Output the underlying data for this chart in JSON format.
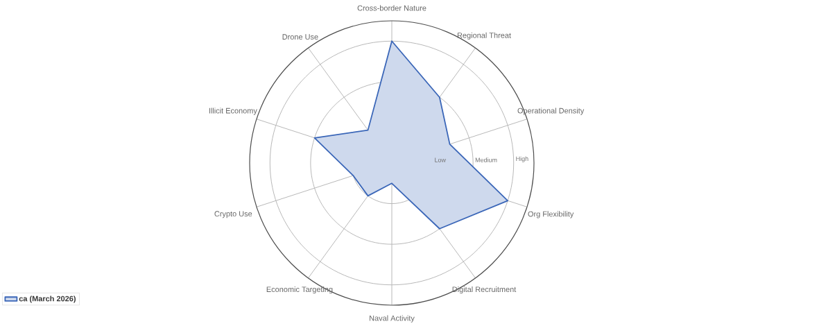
{
  "chart_data": {
    "type": "radar",
    "categories": [
      "Cross-border Nature",
      "Regional Threat",
      "Operational Density",
      "Org Flexibility",
      "Digital Recruitment",
      "Naval Activity",
      "Economic Targeting",
      "Crypto Use",
      "Illicit Economy",
      "Drone Use"
    ],
    "series": [
      {
        "name": "ca (March 2026)",
        "color": "#3a66b8",
        "values": [
          3,
          2,
          1.5,
          3,
          2,
          0.5,
          1,
          1,
          2,
          1
        ]
      }
    ],
    "ylim": [
      0,
      3.5
    ],
    "yticks": [
      {
        "value": 1,
        "label": "Low"
      },
      {
        "value": 2,
        "label": "Medium"
      },
      {
        "value": 3,
        "label": "High"
      }
    ],
    "grid": true,
    "legend": "bottom left"
  }
}
